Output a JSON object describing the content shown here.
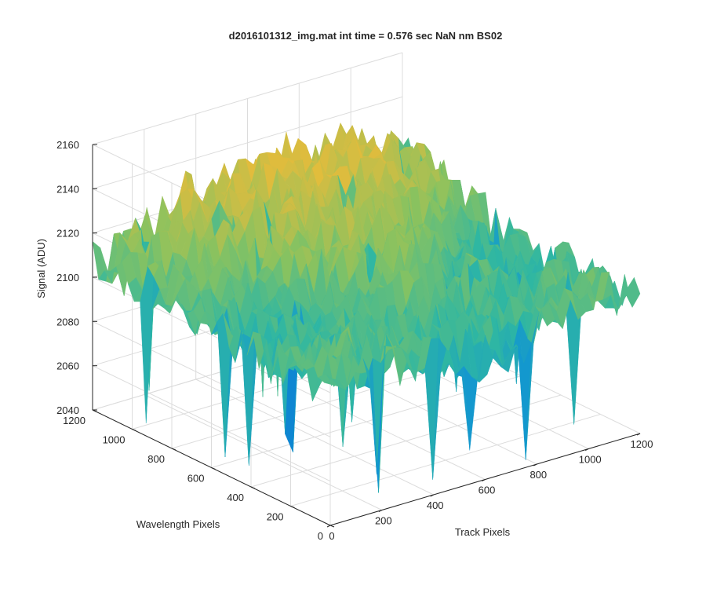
{
  "chart_data": {
    "type": "surface",
    "title": "d2016101312_img.mat int time = 0.576 sec  NaN nm BS02",
    "xlabel": "Track Pixels",
    "ylabel": "Wavelength Pixels",
    "zlabel": "Signal (ADU)",
    "xlim": [
      0,
      1200
    ],
    "ylim": [
      0,
      1200
    ],
    "zlim": [
      2040,
      2160
    ],
    "x_ticks": [
      0,
      200,
      400,
      600,
      800,
      1000,
      1200
    ],
    "y_ticks": [
      0,
      200,
      400,
      600,
      800,
      1000,
      1200
    ],
    "z_ticks": [
      2040,
      2060,
      2080,
      2100,
      2120,
      2140,
      2160
    ],
    "grid": true,
    "colormap": "parula",
    "surface": {
      "description": "noisy pixel signal surface",
      "mean_level": 2100,
      "noise_amplitude": 12,
      "peak_level_near_far_corner": 2160,
      "minimum_spike": 2040
    }
  }
}
